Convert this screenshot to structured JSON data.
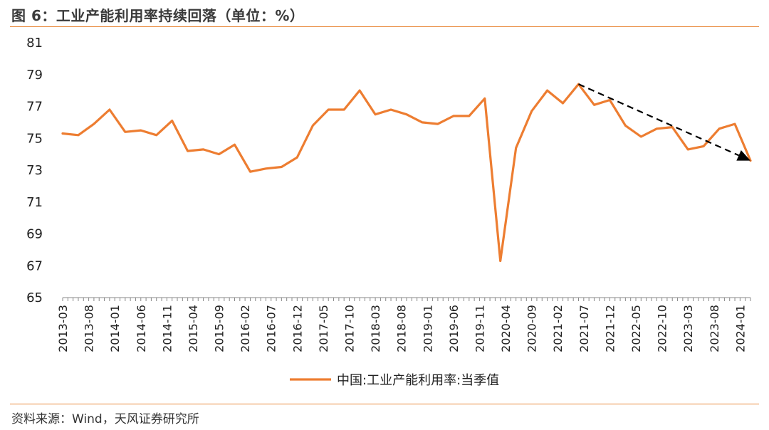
{
  "header": {
    "title": "图 6：工业产能利用率持续回落（单位：%）"
  },
  "footer": {
    "source": "资料来源：Wind，天风证券研究所"
  },
  "colors": {
    "series": "#ed7d31",
    "rule": "#e8883a",
    "axis": "#888888",
    "arrow": "#000000"
  },
  "chart_data": {
    "type": "line",
    "title": "",
    "xlabel": "",
    "ylabel": "",
    "ylim": [
      65,
      81
    ],
    "yticks": [
      65,
      67,
      69,
      71,
      73,
      75,
      77,
      79,
      81
    ],
    "xtick_labels": [
      "2013-03",
      "2013-08",
      "2014-01",
      "2014-06",
      "2014-11",
      "2015-04",
      "2015-09",
      "2016-02",
      "2016-07",
      "2016-12",
      "2017-05",
      "2017-10",
      "2018-03",
      "2018-08",
      "2019-01",
      "2019-06",
      "2019-11",
      "2020-04",
      "2020-09",
      "2021-02",
      "2021-07",
      "2021-12",
      "2022-05",
      "2022-10",
      "2023-03",
      "2023-08",
      "2024-01"
    ],
    "legend_position": "bottom-center",
    "grid": false,
    "x": [
      "2013-03",
      "2013-06",
      "2013-09",
      "2013-12",
      "2014-03",
      "2014-06",
      "2014-09",
      "2014-12",
      "2015-03",
      "2015-06",
      "2015-09",
      "2015-12",
      "2016-03",
      "2016-06",
      "2016-09",
      "2016-12",
      "2017-03",
      "2017-06",
      "2017-09",
      "2017-12",
      "2018-03",
      "2018-06",
      "2018-09",
      "2018-12",
      "2019-03",
      "2019-06",
      "2019-09",
      "2019-12",
      "2020-03",
      "2020-06",
      "2020-09",
      "2020-12",
      "2021-03",
      "2021-06",
      "2021-09",
      "2021-12",
      "2022-03",
      "2022-06",
      "2022-09",
      "2022-12",
      "2023-03",
      "2023-06",
      "2023-09",
      "2023-12",
      "2024-03"
    ],
    "series": [
      {
        "name": "中国:工业产能利用率:当季值",
        "values": [
          75.3,
          75.2,
          75.9,
          76.8,
          75.4,
          75.5,
          75.2,
          76.1,
          74.2,
          74.3,
          74.0,
          74.6,
          72.9,
          73.1,
          73.2,
          73.8,
          75.8,
          76.8,
          76.8,
          78.0,
          76.5,
          76.8,
          76.5,
          76.0,
          75.9,
          76.4,
          76.4,
          77.5,
          67.3,
          74.4,
          76.7,
          78.0,
          77.2,
          78.4,
          77.1,
          77.4,
          75.8,
          75.1,
          75.6,
          75.7,
          74.3,
          74.5,
          75.6,
          75.9,
          73.6
        ]
      }
    ],
    "annotation": {
      "type": "trend-arrow",
      "from": {
        "x": "2021-06",
        "y": 78.4
      },
      "to": {
        "x": "2024-03",
        "y": 73.6
      }
    }
  }
}
